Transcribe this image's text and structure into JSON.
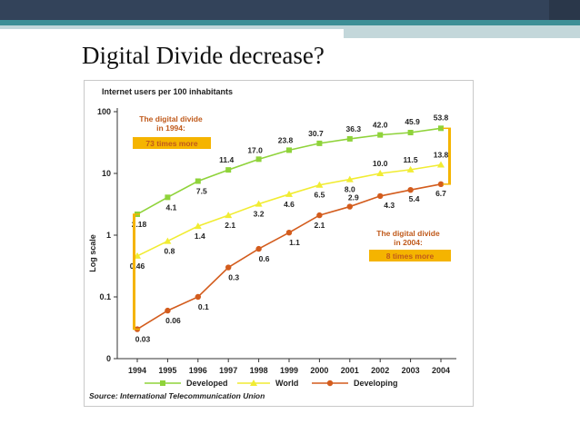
{
  "slide": {
    "title": "Digital Divide decrease?"
  },
  "colors": {
    "developed": "#8fd33a",
    "world": "#f1ec32",
    "developing": "#d35c1d",
    "annotation_text": "#c05a1b",
    "annotation_box": "#f5b400",
    "header_dark": "#33435a",
    "header_accent": "#3e8f96"
  },
  "chart_data": {
    "type": "line",
    "title": "Internet users per 100 inhabitants",
    "ylabel": "Log scale",
    "xlabel": "",
    "yscale": "log",
    "ylim": [
      0.03,
      100
    ],
    "yticks": [
      {
        "value": 100,
        "label": "100"
      },
      {
        "value": 10,
        "label": "10"
      },
      {
        "value": 1,
        "label": "1"
      },
      {
        "value": 0.1,
        "label": "0.1"
      },
      {
        "value": 0.01,
        "label": "0"
      }
    ],
    "categories": [
      "1994",
      "1995",
      "1996",
      "1997",
      "1998",
      "1999",
      "2000",
      "2001",
      "2002",
      "2003",
      "2004"
    ],
    "series": [
      {
        "name": "Developed",
        "color": "#8fd33a",
        "marker": "square",
        "values": [
          2.18,
          4.1,
          7.5,
          11.4,
          17.0,
          23.8,
          30.7,
          36.3,
          42.0,
          45.9,
          53.8
        ],
        "labels": [
          "2.18",
          "4.1",
          "7.5",
          "11.4",
          "17.0",
          "23.8",
          "30.7",
          "36.3",
          "42.0",
          "45.9",
          "53.8"
        ]
      },
      {
        "name": "World",
        "color": "#f1ec32",
        "marker": "triangle",
        "values": [
          0.46,
          0.8,
          1.4,
          2.1,
          3.2,
          4.6,
          6.5,
          8.0,
          10.0,
          11.5,
          13.8
        ],
        "labels": [
          "0.46",
          "0.8",
          "1.4",
          "2.1",
          "3.2",
          "4.6",
          "6.5",
          "8.0",
          "10.0",
          "11.5",
          "13.8"
        ]
      },
      {
        "name": "Developing",
        "color": "#d35c1d",
        "marker": "circle",
        "values": [
          0.03,
          0.06,
          0.1,
          0.3,
          0.6,
          1.1,
          2.1,
          2.9,
          4.3,
          5.4,
          6.7
        ],
        "labels": [
          "0.03",
          "0.06",
          "0.1",
          "0.3",
          "0.6",
          "1.1",
          "2.1",
          "2.9",
          "4.3",
          "5.4",
          "6.7"
        ]
      }
    ],
    "annotations": [
      {
        "text": "The digital divide\nin 1994:",
        "box": "73 times more",
        "year": "1994"
      },
      {
        "text": "The digital divide\nin 2004:",
        "box": "8 times more",
        "year": "2004"
      }
    ],
    "legend_position": "bottom",
    "source": "Source: International Telecommunication Union",
    "grid": false
  }
}
